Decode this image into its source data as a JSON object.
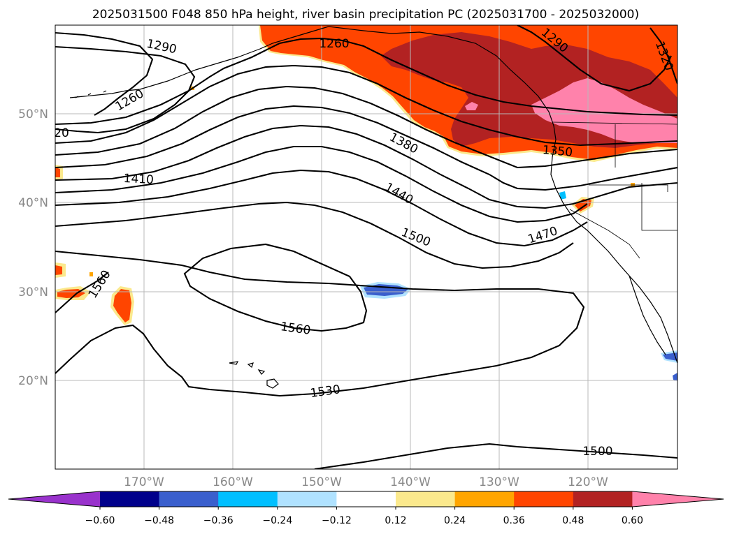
{
  "title": "2025031500 F048 850 hPa height, river basin precipitation PC (2025031700 - 2025032000)",
  "lat_labels": [
    "50°N",
    "40°N",
    "30°N",
    "20°N"
  ],
  "lon_labels": [
    "170°W",
    "160°W",
    "150°W",
    "140°W",
    "130°W",
    "120°W"
  ],
  "contour_labels": [
    "1290",
    "1260",
    "1260",
    "1290",
    "1320",
    "20",
    "1380",
    "1350",
    "1410",
    "1440",
    "1500",
    "1470",
    "1560",
    "1560",
    "1530",
    "1500"
  ],
  "colorbar": {
    "tick_labels": [
      "−0.60",
      "−0.48",
      "−0.36",
      "−0.24",
      "−0.12",
      "0.12",
      "0.24",
      "0.36",
      "0.48",
      "0.60"
    ],
    "colors": [
      "#9932cc",
      "#00008b",
      "#3a5fcd",
      "#00bfff",
      "#b0e2ff",
      "#ffffff",
      "#fbe98d",
      "#ffa500",
      "#ff4500",
      "#b22222",
      "#ff82ab"
    ]
  }
}
